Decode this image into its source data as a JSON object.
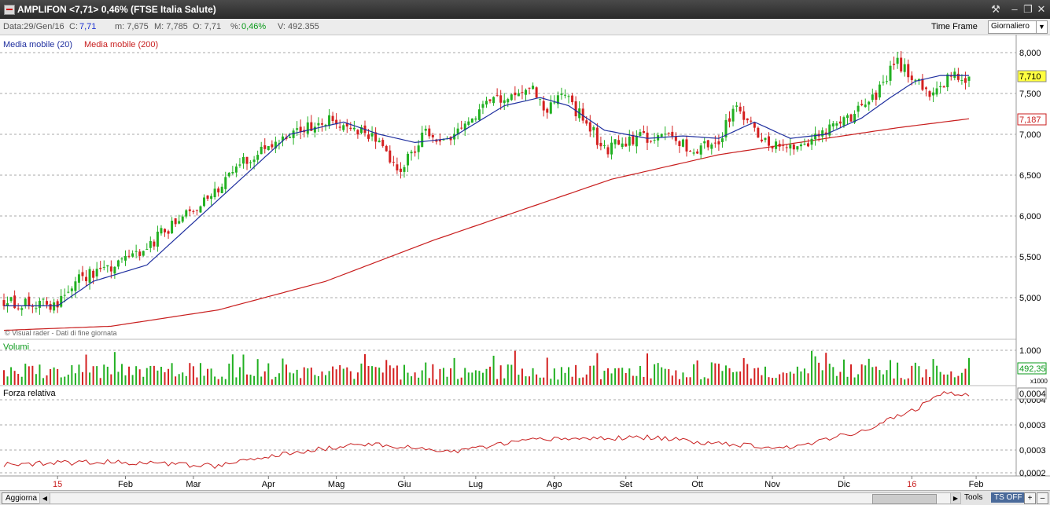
{
  "title": "AMPLIFON <7,71> 0,46%  (FTSE Italia Salute)",
  "info": {
    "date": "Data:29/Gen/16",
    "close_label": "C:",
    "close_value": "7,71",
    "min": "m: 7,675",
    "max": "M: 7,785",
    "open": "O: 7,71",
    "pct_label": "%:",
    "pct_value": "0,46%",
    "volume": "V: 492.355",
    "timeframe_label": "Time Frame",
    "timeframe_value": "Giornaliero"
  },
  "colors": {
    "up": "#22b022",
    "down": "#d42020",
    "ma20": "#1f2f9f",
    "ma200": "#c81e1e"
  },
  "chart_data": [
    {
      "type": "candlestick",
      "legend": [
        {
          "name": "Media mobile (20)",
          "color": "#1f2f9f"
        },
        {
          "name": "Media mobile (200)",
          "color": "#c81e1e"
        }
      ],
      "yticks": [
        "8,000",
        "7,500",
        "7,000",
        "6,500",
        "6,000",
        "5,500",
        "5,000"
      ],
      "ylim": [
        4.65,
        8.1
      ],
      "price_last": "7,710",
      "ma200_last": "7,187",
      "watermark": "© Visual rader - Dati di fine giornata",
      "anchors_close": [
        [
          0,
          4.95
        ],
        [
          15,
          4.9
        ],
        [
          20,
          5.25
        ],
        [
          30,
          5.35
        ],
        [
          40,
          5.6
        ],
        [
          48,
          5.95
        ],
        [
          55,
          6.1
        ],
        [
          60,
          6.35
        ],
        [
          72,
          6.85
        ],
        [
          80,
          7.0
        ],
        [
          92,
          7.2
        ],
        [
          98,
          7.05
        ],
        [
          105,
          6.95
        ],
        [
          110,
          6.55
        ],
        [
          118,
          7.0
        ],
        [
          125,
          6.95
        ],
        [
          135,
          7.4
        ],
        [
          147,
          7.6
        ],
        [
          152,
          7.25
        ],
        [
          156,
          7.5
        ],
        [
          163,
          7.15
        ],
        [
          168,
          6.8
        ],
        [
          175,
          6.95
        ],
        [
          180,
          6.95
        ],
        [
          186,
          7.05
        ],
        [
          192,
          6.8
        ],
        [
          200,
          6.95
        ],
        [
          205,
          7.35
        ],
        [
          212,
          6.9
        ],
        [
          222,
          6.8
        ],
        [
          232,
          7.1
        ],
        [
          242,
          7.35
        ],
        [
          250,
          7.9
        ],
        [
          258,
          7.5
        ],
        [
          265,
          7.7
        ],
        [
          270,
          7.71
        ]
      ],
      "ma20": [
        [
          0,
          4.9
        ],
        [
          15,
          4.9
        ],
        [
          25,
          5.2
        ],
        [
          40,
          5.4
        ],
        [
          50,
          5.8
        ],
        [
          55,
          6.0
        ],
        [
          70,
          6.6
        ],
        [
          80,
          7.0
        ],
        [
          95,
          7.15
        ],
        [
          105,
          7.0
        ],
        [
          115,
          6.9
        ],
        [
          125,
          6.95
        ],
        [
          140,
          7.35
        ],
        [
          150,
          7.45
        ],
        [
          158,
          7.35
        ],
        [
          168,
          7.05
        ],
        [
          180,
          6.95
        ],
        [
          190,
          6.98
        ],
        [
          200,
          6.95
        ],
        [
          210,
          7.15
        ],
        [
          220,
          6.95
        ],
        [
          230,
          7.0
        ],
        [
          240,
          7.2
        ],
        [
          248,
          7.45
        ],
        [
          255,
          7.65
        ],
        [
          262,
          7.72
        ],
        [
          270,
          7.72
        ]
      ],
      "ma200": [
        [
          0,
          4.6
        ],
        [
          30,
          4.65
        ],
        [
          60,
          4.85
        ],
        [
          90,
          5.2
        ],
        [
          120,
          5.7
        ],
        [
          150,
          6.15
        ],
        [
          170,
          6.45
        ],
        [
          200,
          6.75
        ],
        [
          230,
          6.95
        ],
        [
          250,
          7.08
        ],
        [
          270,
          7.19
        ]
      ]
    },
    {
      "type": "bar",
      "name": "Volumi",
      "yticks": [
        "1.000"
      ],
      "ylim": [
        0,
        1100
      ],
      "unit": "x1000",
      "last": "492,35"
    },
    {
      "type": "line",
      "name": "Forza relativa",
      "yticks": [
        "0,0004",
        "0,0003",
        "0,0003",
        "0,0002"
      ],
      "last": "0,0004",
      "anchors": [
        [
          0,
          0.1
        ],
        [
          30,
          0.13
        ],
        [
          60,
          0.08
        ],
        [
          75,
          0.2
        ],
        [
          100,
          0.35
        ],
        [
          125,
          0.25
        ],
        [
          150,
          0.4
        ],
        [
          180,
          0.42
        ],
        [
          200,
          0.35
        ],
        [
          220,
          0.3
        ],
        [
          240,
          0.5
        ],
        [
          255,
          0.75
        ],
        [
          262,
          0.95
        ],
        [
          270,
          0.92
        ]
      ]
    }
  ],
  "xaxis": {
    "labels": [
      {
        "text": "15",
        "i": 15,
        "red": true
      },
      {
        "text": "Feb",
        "i": 34
      },
      {
        "text": "Mar",
        "i": 53
      },
      {
        "text": "Apr",
        "i": 74
      },
      {
        "text": "Mag",
        "i": 93
      },
      {
        "text": "Giu",
        "i": 112
      },
      {
        "text": "Lug",
        "i": 132
      },
      {
        "text": "Ago",
        "i": 154
      },
      {
        "text": "Set",
        "i": 174
      },
      {
        "text": "Ott",
        "i": 194
      },
      {
        "text": "Nov",
        "i": 215
      },
      {
        "text": "Dic",
        "i": 235
      },
      {
        "text": "16",
        "i": 254,
        "red": true
      },
      {
        "text": "Feb",
        "i": 272
      }
    ]
  },
  "bottom": {
    "refresh": "Aggiorna",
    "tools": "Tools",
    "tsoff": "TS OFF"
  }
}
